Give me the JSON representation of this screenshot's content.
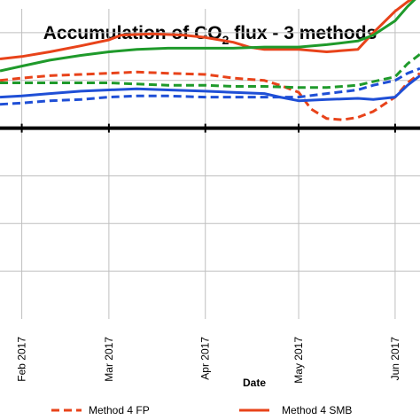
{
  "chart_data": {
    "type": "line",
    "title_main": "Accumulation of CO",
    "title_sub": "2",
    "title_tail": " flux - 3 methods",
    "xlabel": "Date",
    "ylabel": "",
    "x_tick_labels": [
      "Feb 2017",
      "Mar 2017",
      "Apr 2017",
      "May 2017",
      "Jun 2017"
    ],
    "x_tick_dates": [
      "2017-02-01",
      "2017-03-01",
      "2017-04-01",
      "2017-05-01",
      "2017-06-01"
    ],
    "xlim": [
      "2017-01-25",
      "2017-06-09"
    ],
    "ylim": [
      0,
      260
    ],
    "grid": true,
    "zero_line": 160,
    "legend_placement": "bottom",
    "series": [
      {
        "name": "Method 4 FP",
        "color": "#e8431a",
        "dash": true,
        "x": [
          "2017-01-25",
          "2017-02-01",
          "2017-02-10",
          "2017-02-20",
          "2017-03-01",
          "2017-03-10",
          "2017-03-20",
          "2017-04-01",
          "2017-04-10",
          "2017-04-20",
          "2017-04-25",
          "2017-05-01",
          "2017-05-05",
          "2017-05-10",
          "2017-05-15",
          "2017-05-20",
          "2017-05-25",
          "2017-06-01",
          "2017-06-05",
          "2017-06-09"
        ],
        "values": [
          200,
          202,
          204,
          205,
          206,
          207,
          206,
          205,
          202,
          200,
          196,
          190,
          176,
          168,
          167,
          169,
          174,
          186,
          198,
          206
        ]
      },
      {
        "name": "Method 4 SMB",
        "color": "#e8431a",
        "dash": false,
        "x": [
          "2017-01-25",
          "2017-02-01",
          "2017-02-10",
          "2017-02-20",
          "2017-03-01",
          "2017-03-05",
          "2017-03-15",
          "2017-03-25",
          "2017-04-01",
          "2017-04-10",
          "2017-04-15",
          "2017-04-20",
          "2017-04-25",
          "2017-05-01",
          "2017-05-10",
          "2017-05-20",
          "2017-05-25",
          "2017-06-01",
          "2017-06-05",
          "2017-06-09"
        ],
        "values": [
          218,
          220,
          224,
          229,
          234,
          238,
          239,
          238,
          236,
          232,
          228,
          226,
          226,
          226,
          224,
          226,
          240,
          258,
          266,
          272
        ]
      },
      {
        "color": "#1f9a2b",
        "dash": false,
        "x": [
          "2017-01-25",
          "2017-02-01",
          "2017-02-10",
          "2017-02-20",
          "2017-03-01",
          "2017-03-10",
          "2017-03-20",
          "2017-04-01",
          "2017-04-10",
          "2017-04-20",
          "2017-05-01",
          "2017-05-10",
          "2017-05-20",
          "2017-05-25",
          "2017-06-01",
          "2017-06-05",
          "2017-06-09"
        ],
        "values": [
          208,
          212,
          217,
          221,
          224,
          226,
          227,
          227,
          227,
          228,
          228,
          230,
          233,
          238,
          250,
          262,
          272
        ]
      },
      {
        "color": "#1f9a2b",
        "dash": true,
        "x": [
          "2017-01-25",
          "2017-02-01",
          "2017-02-10",
          "2017-02-20",
          "2017-03-01",
          "2017-03-10",
          "2017-03-20",
          "2017-04-01",
          "2017-04-10",
          "2017-04-20",
          "2017-05-01",
          "2017-05-10",
          "2017-05-20",
          "2017-05-25",
          "2017-06-01",
          "2017-06-05",
          "2017-06-09"
        ],
        "values": [
          198,
          198,
          198,
          198,
          198,
          197,
          196,
          196,
          195,
          195,
          194,
          194,
          196,
          199,
          203,
          214,
          222
        ]
      },
      {
        "color": "#1f4fd6",
        "dash": false,
        "x": [
          "2017-01-25",
          "2017-02-01",
          "2017-02-10",
          "2017-02-20",
          "2017-03-01",
          "2017-03-10",
          "2017-03-20",
          "2017-04-01",
          "2017-04-10",
          "2017-04-20",
          "2017-04-25",
          "2017-05-01",
          "2017-05-10",
          "2017-05-20",
          "2017-05-25",
          "2017-06-01",
          "2017-06-05",
          "2017-06-09"
        ],
        "values": [
          186,
          187,
          189,
          191,
          192,
          193,
          192,
          191,
          190,
          189,
          186,
          183,
          184,
          185,
          184,
          186,
          196,
          204
        ]
      },
      {
        "color": "#1f4fd6",
        "dash": true,
        "x": [
          "2017-01-25",
          "2017-02-01",
          "2017-02-10",
          "2017-02-20",
          "2017-03-01",
          "2017-03-10",
          "2017-03-20",
          "2017-04-01",
          "2017-04-10",
          "2017-04-20",
          "2017-05-01",
          "2017-05-10",
          "2017-05-20",
          "2017-05-25",
          "2017-06-01",
          "2017-06-05",
          "2017-06-09"
        ],
        "values": [
          180,
          181,
          183,
          184,
          186,
          187,
          187,
          186,
          186,
          186,
          186,
          189,
          192,
          196,
          200,
          206,
          210
        ]
      }
    ]
  }
}
